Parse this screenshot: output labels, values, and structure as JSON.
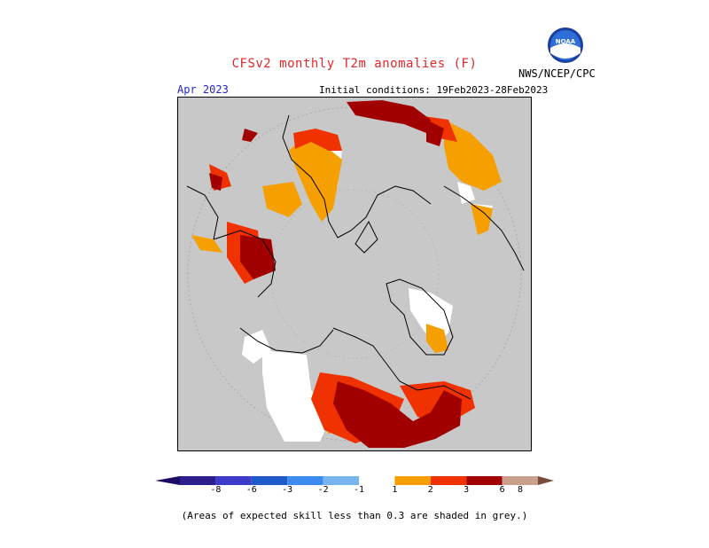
{
  "header": {
    "title": "CFSv2 monthly T2m anomalies (F)",
    "org": "NWS/NCEP/CPC",
    "logo_text": "NOAA",
    "month": "Apr 2023",
    "initial_conditions": "Initial conditions: 19Feb2023-28Feb2023"
  },
  "legend": {
    "bins": [
      {
        "label": "-8",
        "color": "#2c1e8c"
      },
      {
        "label": "-6",
        "color": "#3c3cc8"
      },
      {
        "label": "-3",
        "color": "#1e5ac8"
      },
      {
        "label": "-2",
        "color": "#3c8cf0"
      },
      {
        "label": "-1",
        "color": "#78b4f0"
      },
      {
        "label": "1",
        "color": "#ffffff"
      },
      {
        "label": "2",
        "color": "#f5a000"
      },
      {
        "label": "3",
        "color": "#f03200"
      },
      {
        "label": "6",
        "color": "#a00000"
      },
      {
        "label": "8",
        "color": "#c8a08c"
      }
    ],
    "end_low_color": "#1e0a64",
    "end_high_color": "#7a4a3a"
  },
  "note": "(Areas of expected skill less than 0.3 are shaded in grey.)",
  "colors": {
    "grey": "#c8c8c8",
    "orange": "#f5a000",
    "red": "#f03200",
    "darkred": "#a00000",
    "white": "#ffffff"
  }
}
